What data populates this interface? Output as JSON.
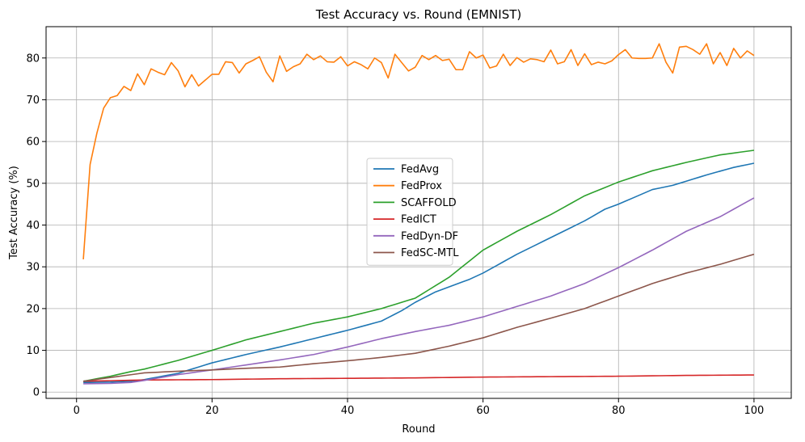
{
  "chart_data": {
    "type": "line",
    "title": "Test Accuracy vs. Round (EMNIST)",
    "xlabel": "Round",
    "ylabel": "Test Accuracy (%)",
    "xlim": [
      -4.5,
      105.5
    ],
    "ylim": [
      -1.5,
      87.5
    ],
    "xticks": [
      0,
      20,
      40,
      60,
      80,
      100
    ],
    "yticks": [
      0,
      10,
      20,
      30,
      40,
      50,
      60,
      70,
      80
    ],
    "grid": true,
    "legend_position": "center-right",
    "x_range": [
      1,
      100
    ],
    "series": [
      {
        "name": "FedAvg",
        "color": "#1f77b4",
        "points": [
          [
            1,
            2.3
          ],
          [
            5,
            2.4
          ],
          [
            8,
            2.6
          ],
          [
            10,
            3.0
          ],
          [
            15,
            4.5
          ],
          [
            20,
            7.0
          ],
          [
            25,
            9.0
          ],
          [
            30,
            10.8
          ],
          [
            35,
            12.8
          ],
          [
            40,
            14.8
          ],
          [
            45,
            17.0
          ],
          [
            48,
            19.5
          ],
          [
            50,
            21.5
          ],
          [
            53,
            24.0
          ],
          [
            55,
            25.2
          ],
          [
            58,
            27.0
          ],
          [
            60,
            28.5
          ],
          [
            65,
            33.0
          ],
          [
            70,
            37.0
          ],
          [
            75,
            41.0
          ],
          [
            78,
            43.8
          ],
          [
            80,
            45.0
          ],
          [
            85,
            48.5
          ],
          [
            88,
            49.5
          ],
          [
            90,
            50.5
          ],
          [
            93,
            52.0
          ],
          [
            97,
            53.8
          ],
          [
            100,
            54.8
          ]
        ]
      },
      {
        "name": "FedProx",
        "color": "#ff7f0e",
        "values": [
          31.8,
          54.5,
          62.0,
          68.0,
          70.5,
          71.0,
          73.2,
          72.2,
          76.2,
          73.6,
          77.4,
          76.6,
          76.0,
          78.9,
          76.9,
          73.1,
          76.0,
          73.3,
          74.7,
          76.1,
          76.1,
          79.1,
          78.9,
          76.4,
          78.6,
          79.4,
          80.3,
          76.6,
          74.3,
          80.5,
          76.8,
          77.9,
          78.6,
          80.9,
          79.6,
          80.5,
          79.1,
          79.0,
          80.3,
          78.1,
          79.1,
          78.4,
          77.4,
          80.0,
          78.9,
          75.2,
          80.9,
          78.9,
          76.9,
          77.8,
          80.6,
          79.6,
          80.6,
          79.4,
          79.7,
          77.2,
          77.2,
          81.5,
          80.0,
          80.7,
          77.6,
          78.1,
          80.9,
          78.2,
          80.1,
          79.0,
          79.8,
          79.6,
          79.1,
          81.9,
          78.6,
          79.1,
          82.0,
          78.2,
          81.0,
          78.4,
          79.0,
          78.6,
          79.3,
          80.8,
          82.0,
          80.0,
          79.9,
          79.9,
          80.0,
          83.4,
          79.0,
          76.4,
          82.6,
          82.8,
          82.0,
          80.9,
          83.4,
          78.6,
          81.3,
          78.2,
          82.3,
          80.0,
          81.7,
          80.6
        ]
      },
      {
        "name": "SCAFFOLD",
        "color": "#2ca02c",
        "points": [
          [
            1,
            2.6
          ],
          [
            5,
            3.8
          ],
          [
            8,
            4.9
          ],
          [
            10,
            5.5
          ],
          [
            15,
            7.6
          ],
          [
            20,
            10.0
          ],
          [
            25,
            12.5
          ],
          [
            30,
            14.5
          ],
          [
            35,
            16.5
          ],
          [
            40,
            18.0
          ],
          [
            45,
            20.0
          ],
          [
            50,
            22.5
          ],
          [
            55,
            27.5
          ],
          [
            60,
            34.0
          ],
          [
            65,
            38.5
          ],
          [
            70,
            42.5
          ],
          [
            75,
            47.0
          ],
          [
            80,
            50.3
          ],
          [
            85,
            53.0
          ],
          [
            90,
            55.0
          ],
          [
            95,
            56.8
          ],
          [
            100,
            57.9
          ]
        ]
      },
      {
        "name": "FedICT",
        "color": "#d62728",
        "points": [
          [
            1,
            2.6
          ],
          [
            10,
            2.9
          ],
          [
            20,
            3.0
          ],
          [
            30,
            3.2
          ],
          [
            40,
            3.3
          ],
          [
            50,
            3.4
          ],
          [
            60,
            3.6
          ],
          [
            70,
            3.7
          ],
          [
            80,
            3.8
          ],
          [
            90,
            4.0
          ],
          [
            100,
            4.1
          ]
        ]
      },
      {
        "name": "FedDyn-DF",
        "color": "#9467bd",
        "points": [
          [
            1,
            2.0
          ],
          [
            5,
            2.1
          ],
          [
            8,
            2.3
          ],
          [
            10,
            2.8
          ],
          [
            15,
            4.2
          ],
          [
            20,
            5.3
          ],
          [
            25,
            6.5
          ],
          [
            30,
            7.7
          ],
          [
            35,
            9.0
          ],
          [
            40,
            10.8
          ],
          [
            45,
            12.8
          ],
          [
            50,
            14.5
          ],
          [
            55,
            16.0
          ],
          [
            60,
            18.0
          ],
          [
            65,
            20.5
          ],
          [
            70,
            23.0
          ],
          [
            75,
            26.0
          ],
          [
            80,
            29.8
          ],
          [
            85,
            34.0
          ],
          [
            90,
            38.5
          ],
          [
            95,
            42.0
          ],
          [
            100,
            46.5
          ]
        ]
      },
      {
        "name": "FedSC-MTL",
        "color": "#8c564b",
        "points": [
          [
            1,
            2.6
          ],
          [
            5,
            3.5
          ],
          [
            10,
            4.6
          ],
          [
            15,
            5.0
          ],
          [
            20,
            5.3
          ],
          [
            25,
            5.7
          ],
          [
            30,
            6.0
          ],
          [
            35,
            6.8
          ],
          [
            40,
            7.5
          ],
          [
            45,
            8.3
          ],
          [
            50,
            9.3
          ],
          [
            55,
            11.0
          ],
          [
            60,
            13.0
          ],
          [
            65,
            15.5
          ],
          [
            70,
            17.7
          ],
          [
            75,
            20.0
          ],
          [
            80,
            23.0
          ],
          [
            85,
            26.0
          ],
          [
            90,
            28.5
          ],
          [
            95,
            30.6
          ],
          [
            100,
            33.0
          ]
        ]
      }
    ]
  }
}
